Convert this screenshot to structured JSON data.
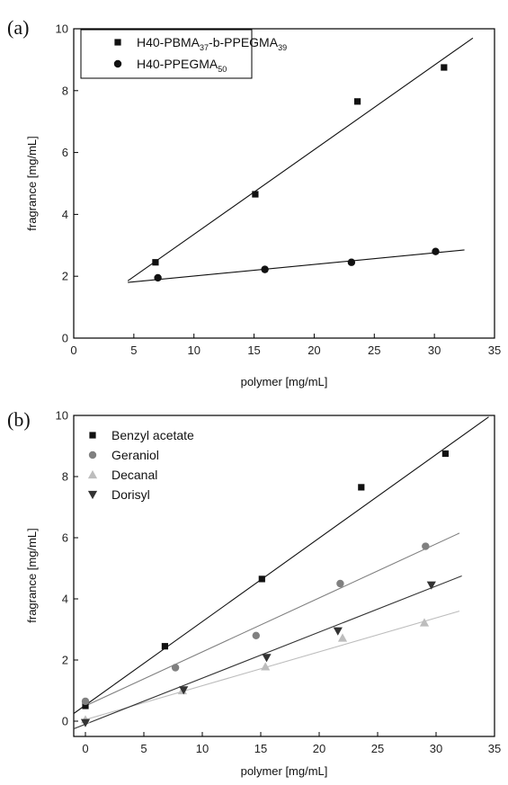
{
  "panels": [
    {
      "label": "(a)"
    },
    {
      "label": "(b)"
    }
  ],
  "chart_data": [
    {
      "type": "scatter",
      "xlabel": "polymer [mg/mL]",
      "ylabel": "fragrance [mg/mL]",
      "xlim": [
        0,
        35
      ],
      "ylim": [
        0,
        10
      ],
      "x_ticks": [
        0,
        5,
        10,
        15,
        20,
        25,
        30,
        35
      ],
      "y_ticks": [
        0,
        2,
        4,
        6,
        8,
        10
      ],
      "grid": false,
      "legend_position": "top-left",
      "legend_box": true,
      "series": [
        {
          "name": "H40-PBMA37-b-PPEGMA39",
          "legend_parts": [
            [
              "H40-PBMA",
              false
            ],
            [
              "37",
              true
            ],
            [
              "-b-PPEGMA",
              false
            ],
            [
              "39",
              true
            ]
          ],
          "marker": "square",
          "color": "#111111",
          "x": [
            6.8,
            15.1,
            23.6,
            30.8
          ],
          "y": [
            2.45,
            4.65,
            7.65,
            8.75
          ],
          "fit": {
            "x": [
              4.5,
              33.2
            ],
            "y": [
              1.85,
              9.7
            ]
          }
        },
        {
          "name": "H40-PPEGMA50",
          "legend_parts": [
            [
              "H40-PPEGMA",
              false
            ],
            [
              "50",
              true
            ]
          ],
          "marker": "circle",
          "color": "#111111",
          "x": [
            7.0,
            15.9,
            23.1,
            30.1
          ],
          "y": [
            1.95,
            2.22,
            2.45,
            2.8
          ],
          "fit": {
            "x": [
              4.5,
              32.5
            ],
            "y": [
              1.8,
              2.85
            ]
          }
        }
      ]
    },
    {
      "type": "scatter",
      "xlabel": "polymer [mg/mL]",
      "ylabel": "fragrance [mg/mL]",
      "xlim": [
        -1,
        35
      ],
      "ylim": [
        -0.5,
        10
      ],
      "x_ticks": [
        0,
        5,
        10,
        15,
        20,
        25,
        30,
        35
      ],
      "y_ticks": [
        0,
        2,
        4,
        6,
        8,
        10
      ],
      "grid": false,
      "legend_position": "top-left",
      "legend_box": false,
      "series": [
        {
          "name": "Benzyl acetate",
          "marker": "square",
          "color": "#111111",
          "x": [
            0,
            6.8,
            15.1,
            23.6,
            30.8
          ],
          "y": [
            0.5,
            2.45,
            4.65,
            7.65,
            8.75
          ],
          "fit": {
            "x": [
              -1,
              34.5
            ],
            "y": [
              0.25,
              9.95
            ]
          }
        },
        {
          "name": "Geraniol",
          "marker": "circle",
          "color": "#808080",
          "x": [
            0,
            7.7,
            14.6,
            21.8,
            29.1
          ],
          "y": [
            0.65,
            1.75,
            2.8,
            4.5,
            5.72
          ],
          "fit": {
            "x": [
              0,
              32
            ],
            "y": [
              0.5,
              6.15
            ]
          }
        },
        {
          "name": "Decanal",
          "marker": "triangle-up",
          "color": "#bdbdbd",
          "x": [
            0,
            8.3,
            15.4,
            22.0,
            29.0
          ],
          "y": [
            0.05,
            1.0,
            1.78,
            2.72,
            3.22
          ],
          "fit": {
            "x": [
              0,
              32
            ],
            "y": [
              0.05,
              3.6
            ]
          }
        },
        {
          "name": "Dorisyl",
          "marker": "triangle-down",
          "color": "#333333",
          "x": [
            0,
            8.4,
            15.5,
            21.6,
            29.6
          ],
          "y": [
            -0.05,
            1.02,
            2.08,
            2.95,
            4.45
          ],
          "fit": {
            "x": [
              -1,
              32.2
            ],
            "y": [
              -0.25,
              4.75
            ]
          }
        }
      ]
    }
  ]
}
